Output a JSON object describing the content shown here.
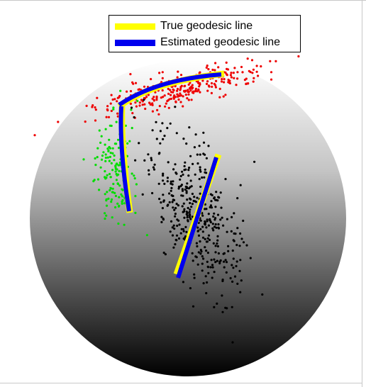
{
  "colors": {
    "true_line": "#ffff00",
    "estimated_line": "#0000ee",
    "red": "#ee0000",
    "green": "#00dd00",
    "black": "#000000"
  },
  "legend": {
    "items": [
      {
        "label": "True geodesic line",
        "color": "#ffff00"
      },
      {
        "label": "Estimated geodesic line",
        "color": "#0000ee"
      }
    ],
    "placement": "top"
  },
  "chart_data": {
    "type": "scatter",
    "title": "",
    "xlabel": "",
    "ylabel": "",
    "grid": false,
    "surface": "shaded sphere (white at top to black at bottom)",
    "series": [
      {
        "color": "#ee0000",
        "marker": "dot",
        "count": 300
      },
      {
        "color": "#00dd00",
        "marker": "dot",
        "count": 150
      },
      {
        "color": "#000000",
        "marker": "dot",
        "count": 400
      }
    ],
    "lines": [
      {
        "name": "True geodesic line",
        "color": "#ffff00",
        "paths": 3
      },
      {
        "name": "Estimated geodesic line",
        "color": "#0000ee",
        "paths": 3
      }
    ]
  }
}
